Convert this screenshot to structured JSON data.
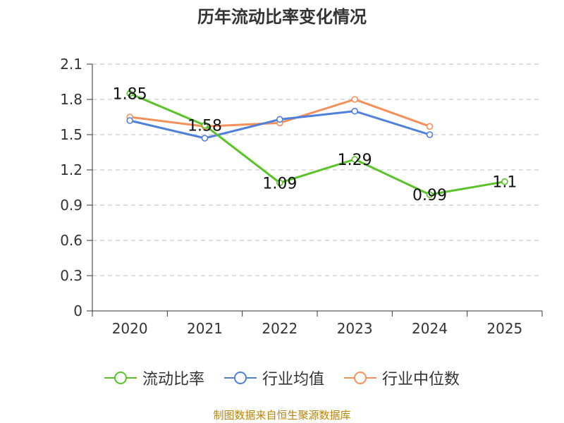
{
  "chart_data": {
    "type": "line",
    "title": "历年流动比率变化情况",
    "categories": [
      "2020",
      "2021",
      "2022",
      "2023",
      "2024",
      "2025"
    ],
    "ylim": [
      0,
      2.1
    ],
    "yticks": [
      "0",
      "0.3",
      "0.6",
      "0.9",
      "1.2",
      "1.5",
      "1.8",
      "2.1"
    ],
    "grid": true,
    "legend_position": "bottom",
    "series": [
      {
        "name": "流动比率",
        "color": "#5ac328",
        "values": [
          1.85,
          1.58,
          1.09,
          1.29,
          0.99,
          1.1
        ],
        "labels": [
          "1.85",
          "1.58",
          "1.09",
          "1.29",
          "0.99",
          "1.1"
        ]
      },
      {
        "name": "行业均值",
        "color": "#4f80dc",
        "values": [
          1.62,
          1.47,
          1.63,
          1.7,
          1.5,
          null
        ]
      },
      {
        "name": "行业中位数",
        "color": "#f5905a",
        "values": [
          1.65,
          1.57,
          1.6,
          1.8,
          1.57,
          null
        ]
      }
    ]
  },
  "source": "制图数据来自恒生聚源数据库"
}
